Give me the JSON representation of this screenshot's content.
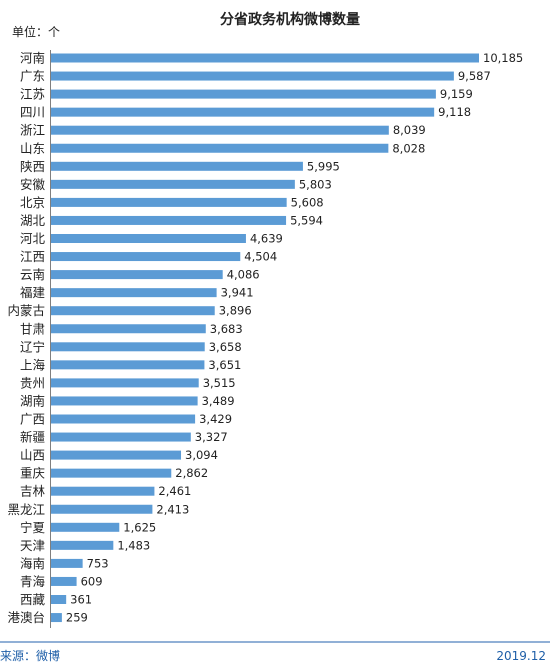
{
  "chart_data": {
    "type": "bar",
    "orientation": "horizontal",
    "title": "分省政务机构微博数量",
    "unit_label": "单位：个",
    "categories": [
      "河南",
      "广东",
      "江苏",
      "四川",
      "浙江",
      "山东",
      "陕西",
      "安徽",
      "北京",
      "湖北",
      "河北",
      "江西",
      "云南",
      "福建",
      "内蒙古",
      "甘肃",
      "辽宁",
      "上海",
      "贵州",
      "湖南",
      "广西",
      "新疆",
      "山西",
      "重庆",
      "吉林",
      "黑龙江",
      "宁夏",
      "天津",
      "海南",
      "青海",
      "西藏",
      "港澳台"
    ],
    "values": [
      10185,
      9587,
      9159,
      9118,
      8039,
      8028,
      5995,
      5803,
      5608,
      5594,
      4639,
      4504,
      4086,
      3941,
      3896,
      3683,
      3658,
      3651,
      3515,
      3489,
      3429,
      3327,
      3094,
      2862,
      2461,
      2413,
      1625,
      1483,
      753,
      609,
      361,
      259
    ],
    "value_labels": [
      "10,185",
      "9,587",
      "9,159",
      "9,118",
      "8,039",
      "8,028",
      "5,995",
      "5,803",
      "5,608",
      "5,594",
      "4,639",
      "4,504",
      "4,086",
      "3,941",
      "3,896",
      "3,683",
      "3,658",
      "3,651",
      "3,515",
      "3,489",
      "3,429",
      "3,327",
      "3,094",
      "2,862",
      "2,461",
      "2,413",
      "1,625",
      "1,483",
      "753",
      "609",
      "361",
      "259"
    ],
    "xlim": [
      0,
      10185
    ],
    "grid": false,
    "legend": "none",
    "bar_color": "#5b9bd5"
  },
  "footer": {
    "source": "来源：微博",
    "date": "2019.12"
  }
}
